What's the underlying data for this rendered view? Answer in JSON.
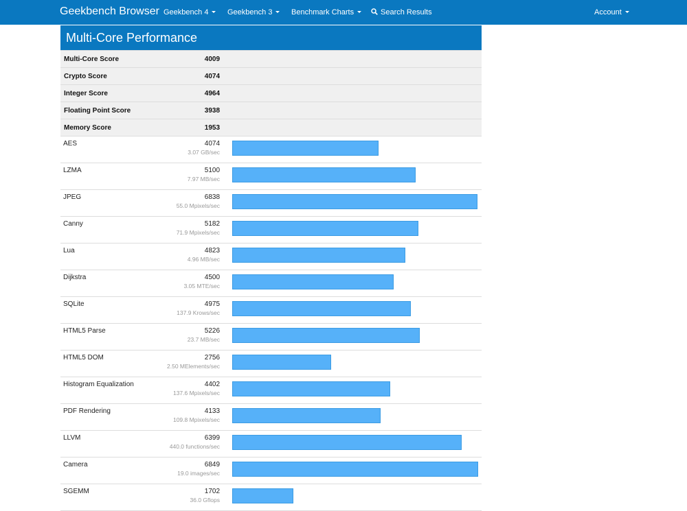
{
  "navbar": {
    "brand": "Geekbench Browser",
    "items": [
      {
        "label": "Geekbench 4"
      },
      {
        "label": "Geekbench 3"
      },
      {
        "label": "Benchmark Charts"
      }
    ],
    "search_label": "Search Results",
    "account_label": "Account"
  },
  "panel": {
    "title": "Multi-Core Performance",
    "summary": [
      {
        "label": "Multi-Core Score",
        "value": "4009"
      },
      {
        "label": "Crypto Score",
        "value": "4074"
      },
      {
        "label": "Integer Score",
        "value": "4964"
      },
      {
        "label": "Floating Point Score",
        "value": "3938"
      },
      {
        "label": "Memory Score",
        "value": "1953"
      }
    ],
    "max_score": 6849,
    "benchmarks": [
      {
        "name": "AES",
        "score": 4074,
        "rate": "3.07 GB/sec"
      },
      {
        "name": "LZMA",
        "score": 5100,
        "rate": "7.97 MB/sec"
      },
      {
        "name": "JPEG",
        "score": 6838,
        "rate": "55.0 Mpixels/sec"
      },
      {
        "name": "Canny",
        "score": 5182,
        "rate": "71.9 Mpixels/sec"
      },
      {
        "name": "Lua",
        "score": 4823,
        "rate": "4.96 MB/sec"
      },
      {
        "name": "Dijkstra",
        "score": 4500,
        "rate": "3.05 MTE/sec"
      },
      {
        "name": "SQLite",
        "score": 4975,
        "rate": "137.9 Krows/sec"
      },
      {
        "name": "HTML5 Parse",
        "score": 5226,
        "rate": "23.7 MB/sec"
      },
      {
        "name": "HTML5 DOM",
        "score": 2756,
        "rate": "2.50 MElements/sec"
      },
      {
        "name": "Histogram Equalization",
        "score": 4402,
        "rate": "137.6 Mpixels/sec"
      },
      {
        "name": "PDF Rendering",
        "score": 4133,
        "rate": "109.8 Mpixels/sec"
      },
      {
        "name": "LLVM",
        "score": 6399,
        "rate": "440.0 functions/sec"
      },
      {
        "name": "Camera",
        "score": 6849,
        "rate": "19.0 images/sec"
      },
      {
        "name": "SGEMM",
        "score": 1702,
        "rate": "36.0 Gflops"
      }
    ]
  },
  "colors": {
    "navbar": "#0a78c0",
    "bar": "#56b1f9"
  }
}
